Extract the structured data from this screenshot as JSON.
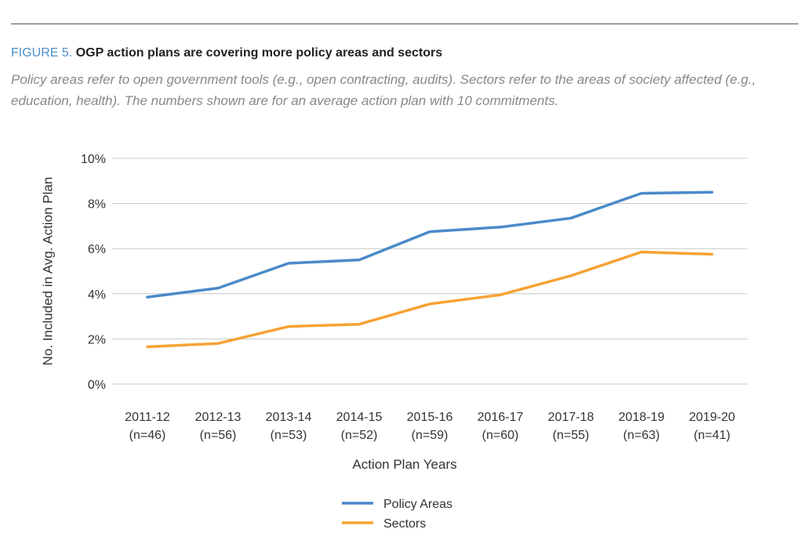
{
  "figure": {
    "label": "FIGURE 5.",
    "headline": "OGP action plans are covering more policy areas and sectors",
    "subtitle": "Policy areas refer to open government tools (e.g., open contracting, audits). Sectors refer to the areas of society affected (e.g., education, health). The numbers shown are for an average action plan with 10 commitments."
  },
  "chart_data": {
    "type": "line",
    "categories": [
      [
        "2011-12",
        "(n=46)"
      ],
      [
        "2012-13",
        "(n=56)"
      ],
      [
        "2013-14",
        "(n=53)"
      ],
      [
        "2014-15",
        "(n=52)"
      ],
      [
        "2015-16",
        "(n=59)"
      ],
      [
        "2016-17",
        "(n=60)"
      ],
      [
        "2017-18",
        "(n=55)"
      ],
      [
        "2018-19",
        "(n=63)"
      ],
      [
        "2019-20",
        "(n=41)"
      ]
    ],
    "series": [
      {
        "name": "Policy Areas",
        "color": "#4a8ac9",
        "values": [
          3.85,
          4.25,
          5.35,
          5.5,
          6.75,
          6.95,
          7.35,
          8.45,
          8.5
        ]
      },
      {
        "name": "Sectors",
        "color": "#f7a234",
        "values": [
          1.65,
          1.8,
          2.55,
          2.65,
          3.55,
          3.95,
          4.8,
          5.85,
          5.75
        ]
      }
    ],
    "ylim": [
      0,
      10
    ],
    "yticks": [
      0,
      2,
      4,
      6,
      8,
      10
    ],
    "ytick_suffix": "%",
    "xlabel": "Action Plan Years",
    "ylabel": "No. Included in Avg. Action Plan",
    "grid": true,
    "legend_position": "bottom-center"
  }
}
